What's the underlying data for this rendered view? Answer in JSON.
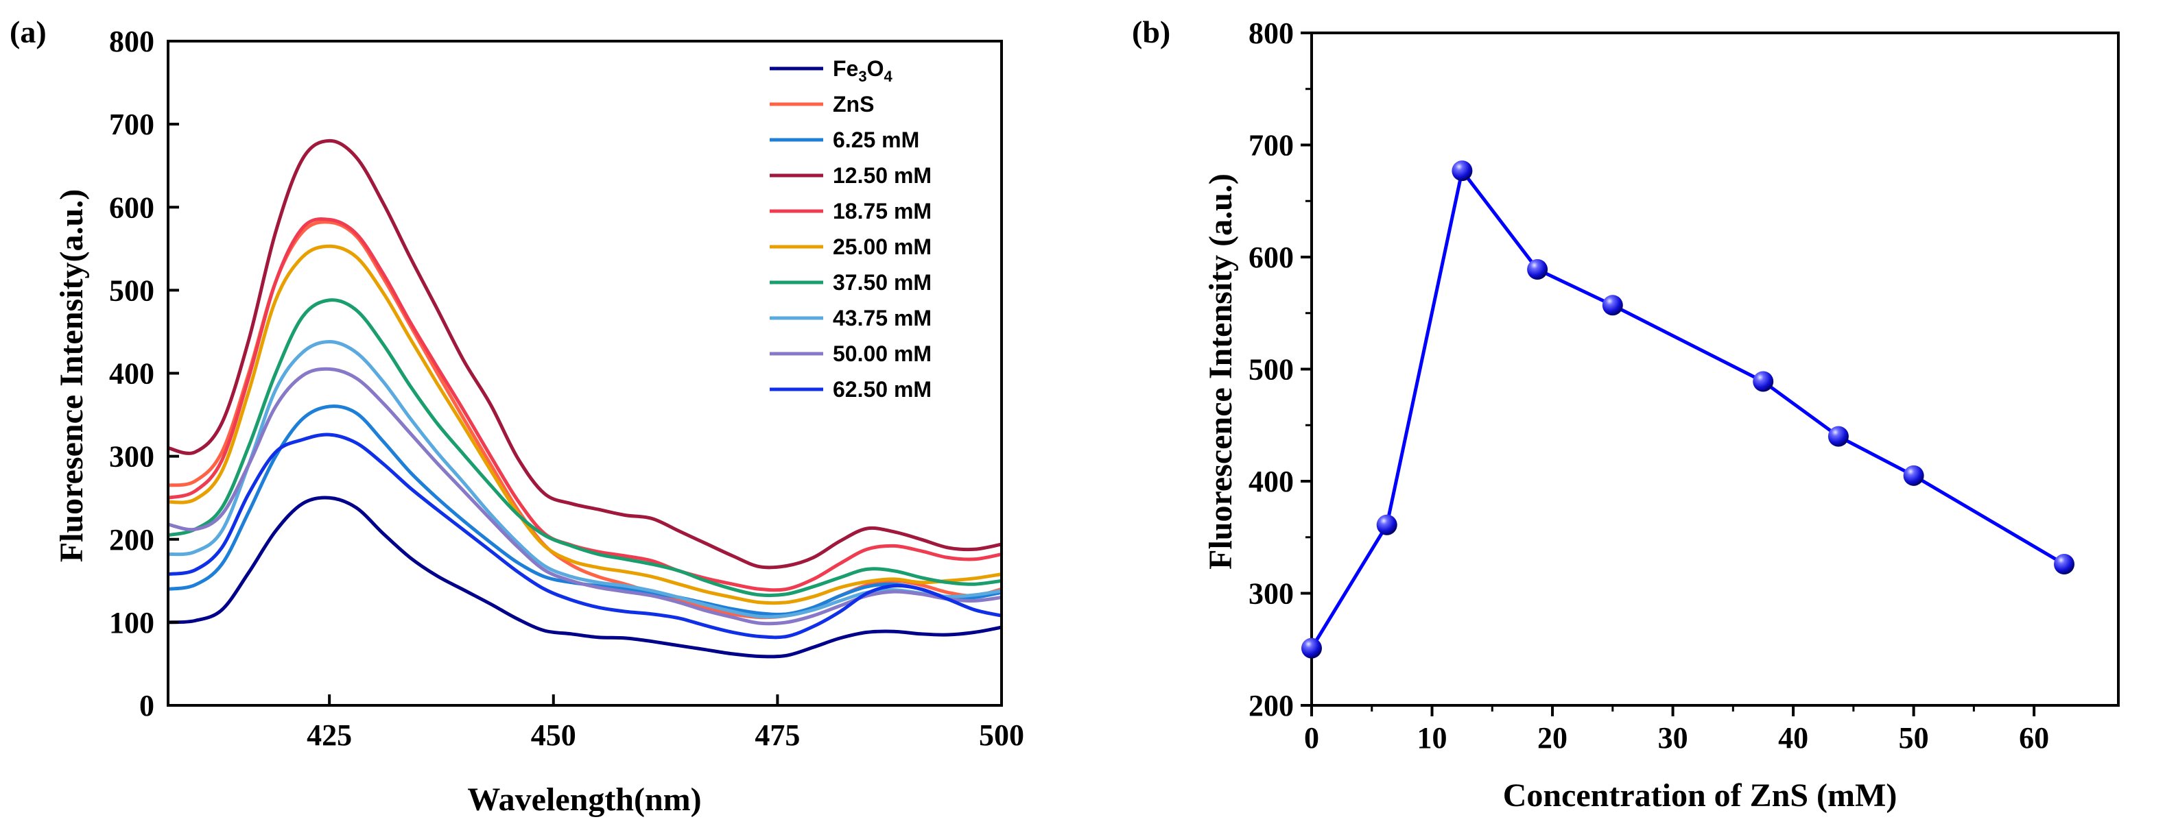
{
  "chart_data": [
    {
      "panel_label": "(a)",
      "type": "line",
      "xlabel": "Wavelength(nm)",
      "ylabel": "Fluoresence Intensity(a.u.)",
      "xlim": [
        407,
        500
      ],
      "ylim": [
        0,
        800
      ],
      "xticks": [
        425,
        450,
        475,
        500
      ],
      "xtick_labels": [
        "425",
        "450",
        "475",
        "500"
      ],
      "yticks": [
        0,
        100,
        200,
        300,
        400,
        500,
        600,
        700,
        800
      ],
      "ytick_labels": [
        "0",
        "100",
        "200",
        "300",
        "400",
        "500",
        "600",
        "700",
        "800"
      ],
      "legend_position": "top-right",
      "x": [
        407,
        410,
        413,
        416,
        419,
        422,
        425,
        428,
        431,
        434,
        437,
        440,
        443,
        446,
        449,
        452,
        455,
        458,
        461,
        464,
        467,
        470,
        473,
        476,
        479,
        482,
        485,
        488,
        491,
        494,
        497,
        500
      ],
      "series": [
        {
          "name": "Fe3O4",
          "label_base": "Fe",
          "label_sub1": "3",
          "label_mid": "O",
          "label_sub2": "4",
          "color": "#00008B",
          "values": [
            100,
            102,
            115,
            160,
            210,
            243,
            250,
            238,
            207,
            178,
            156,
            139,
            122,
            104,
            90,
            86,
            82,
            81,
            77,
            72,
            67,
            62,
            59,
            60,
            70,
            81,
            88,
            89,
            86,
            85,
            88,
            94
          ]
        },
        {
          "name": "ZnS",
          "color": "#FF6347",
          "values": [
            265,
            270,
            305,
            400,
            510,
            570,
            582,
            565,
            515,
            458,
            401,
            345,
            290,
            236,
            193,
            169,
            155,
            146,
            136,
            126,
            117,
            110,
            106,
            108,
            118,
            132,
            145,
            150,
            145,
            136,
            132,
            140
          ]
        },
        {
          "name": "6.25 mM",
          "color": "#1E7FD8",
          "values": [
            140,
            145,
            170,
            233,
            300,
            345,
            360,
            352,
            318,
            281,
            250,
            222,
            196,
            172,
            155,
            148,
            144,
            140,
            135,
            130,
            123,
            116,
            111,
            110,
            118,
            132,
            143,
            146,
            140,
            130,
            130,
            136
          ]
        },
        {
          "name": "12.50 mM",
          "color": "#A0183C",
          "values": [
            310,
            305,
            340,
            440,
            570,
            658,
            680,
            660,
            605,
            540,
            478,
            415,
            362,
            298,
            255,
            243,
            236,
            229,
            225,
            210,
            195,
            180,
            167,
            168,
            178,
            198,
            213,
            209,
            200,
            190,
            188,
            194
          ]
        },
        {
          "name": "18.75 mM",
          "color": "#F03C50",
          "values": [
            250,
            258,
            295,
            395,
            510,
            575,
            585,
            568,
            520,
            462,
            408,
            355,
            300,
            247,
            207,
            193,
            185,
            180,
            174,
            162,
            153,
            146,
            140,
            140,
            152,
            171,
            188,
            192,
            186,
            178,
            176,
            182
          ]
        },
        {
          "name": "25.00 mM",
          "color": "#E8A000",
          "values": [
            245,
            248,
            282,
            378,
            488,
            540,
            553,
            540,
            497,
            442,
            388,
            336,
            283,
            232,
            192,
            174,
            166,
            161,
            155,
            146,
            137,
            130,
            124,
            124,
            131,
            142,
            149,
            152,
            148,
            150,
            153,
            158
          ]
        },
        {
          "name": "37.50 mM",
          "color": "#1A9E6E",
          "values": [
            205,
            212,
            238,
            312,
            400,
            468,
            488,
            476,
            435,
            385,
            340,
            302,
            265,
            230,
            205,
            192,
            182,
            176,
            170,
            162,
            150,
            140,
            133,
            134,
            143,
            154,
            164,
            162,
            154,
            148,
            146,
            150
          ]
        },
        {
          "name": "43.75 mM",
          "color": "#5AAAE0",
          "values": [
            182,
            185,
            210,
            290,
            380,
            425,
            438,
            425,
            390,
            346,
            305,
            268,
            230,
            196,
            168,
            155,
            148,
            144,
            138,
            130,
            121,
            113,
            107,
            108,
            115,
            126,
            136,
            139,
            135,
            131,
            133,
            138
          ]
        },
        {
          "name": "50.00 mM",
          "color": "#8878C8",
          "values": [
            218,
            212,
            230,
            290,
            360,
            397,
            405,
            394,
            364,
            328,
            292,
            258,
            224,
            191,
            163,
            150,
            142,
            137,
            132,
            124,
            114,
            106,
            99,
            100,
            108,
            120,
            132,
            137,
            134,
            128,
            126,
            130
          ]
        },
        {
          "name": "62.50 mM",
          "color": "#1030E8",
          "values": [
            158,
            163,
            190,
            255,
            305,
            320,
            326,
            316,
            291,
            262,
            236,
            211,
            186,
            161,
            140,
            127,
            118,
            113,
            110,
            105,
            96,
            88,
            83,
            83,
            95,
            113,
            135,
            144,
            140,
            128,
            115,
            108
          ]
        }
      ]
    },
    {
      "panel_label": "(b)",
      "type": "line",
      "xlabel": "Concentration of ZnS (mM)",
      "ylabel": "Fluorescence Intensity (a.u.)",
      "xlim": [
        0,
        67
      ],
      "ylim": [
        200,
        800
      ],
      "xticks": [
        0,
        10,
        20,
        30,
        40,
        50,
        60
      ],
      "xtick_labels": [
        "0",
        "10",
        "20",
        "30",
        "40",
        "50",
        "60"
      ],
      "yticks": [
        200,
        300,
        400,
        500,
        600,
        700,
        800
      ],
      "ytick_labels": [
        "200",
        "300",
        "400",
        "500",
        "600",
        "700",
        "800"
      ],
      "marker": "sphere",
      "color": "#0000FF",
      "x": [
        0,
        6.25,
        12.5,
        18.75,
        25,
        37.5,
        43.75,
        50,
        62.5
      ],
      "y": [
        251,
        361,
        677,
        589,
        557,
        489,
        440,
        405,
        326
      ]
    }
  ]
}
